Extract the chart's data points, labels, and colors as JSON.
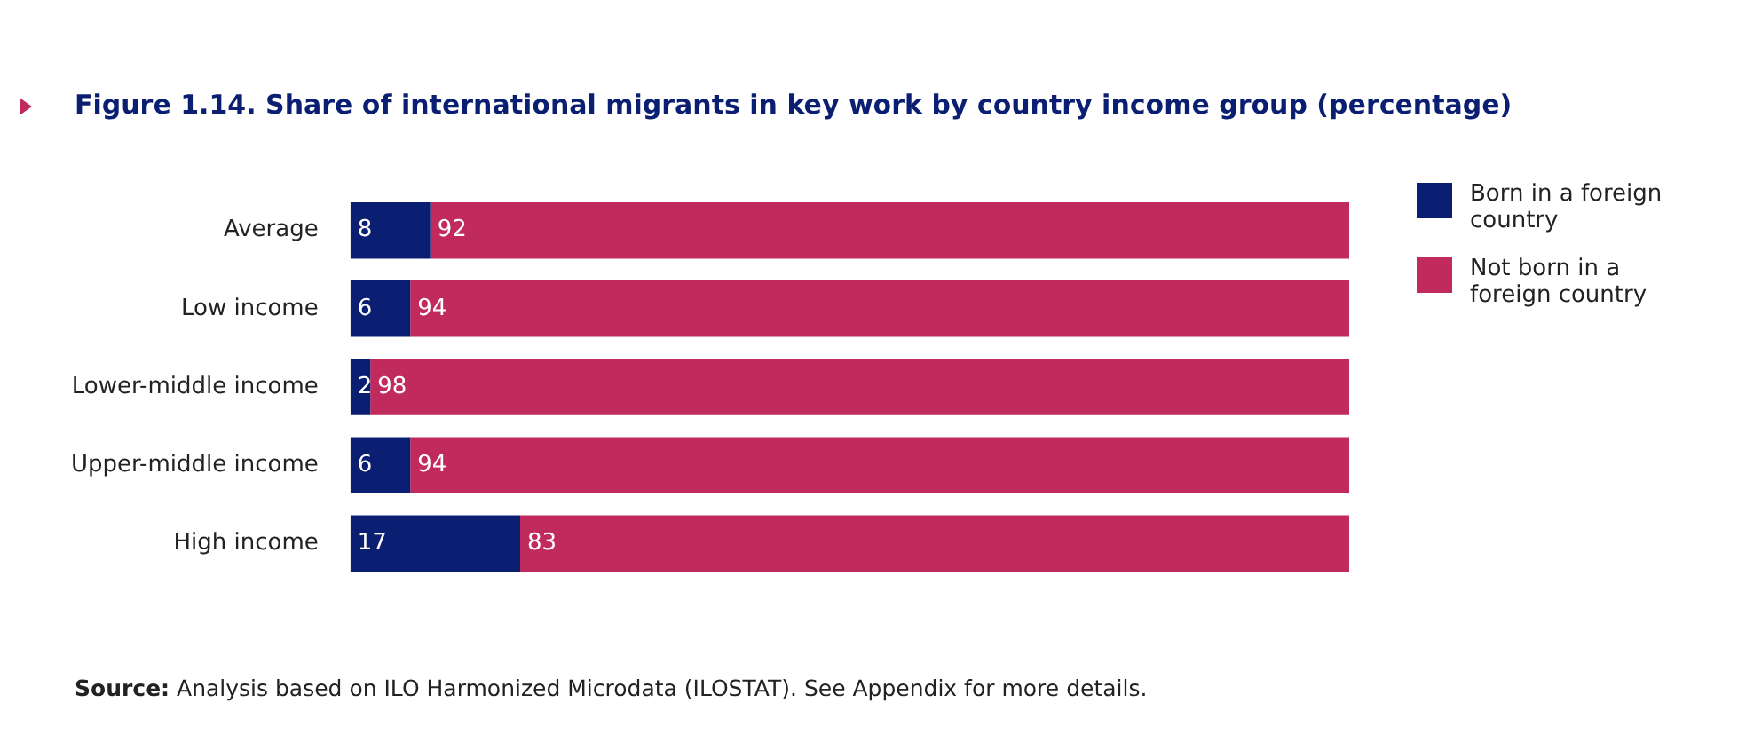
{
  "chart_data": {
    "type": "bar",
    "orientation": "horizontal",
    "stacked": true,
    "title": "Figure 1.14.  Share of international migrants in key work by country income group (percentage)",
    "categories": [
      "Average",
      "Low income",
      "Lower-middle income",
      "Upper-middle income",
      "High income"
    ],
    "series": [
      {
        "name": "Born in a foreign country",
        "color": "#0b1f72",
        "values": [
          8,
          6,
          2,
          6,
          17
        ]
      },
      {
        "name": "Not born in a foreign country",
        "color": "#c02a5c",
        "values": [
          92,
          94,
          98,
          94,
          83
        ]
      }
    ],
    "data_labels": true,
    "legend": "right",
    "tick_labels": "y",
    "annotations": [
      "Source: Analysis based on ILO Harmonized Microdata (ILOSTAT). See Appendix for more details."
    ]
  }
}
